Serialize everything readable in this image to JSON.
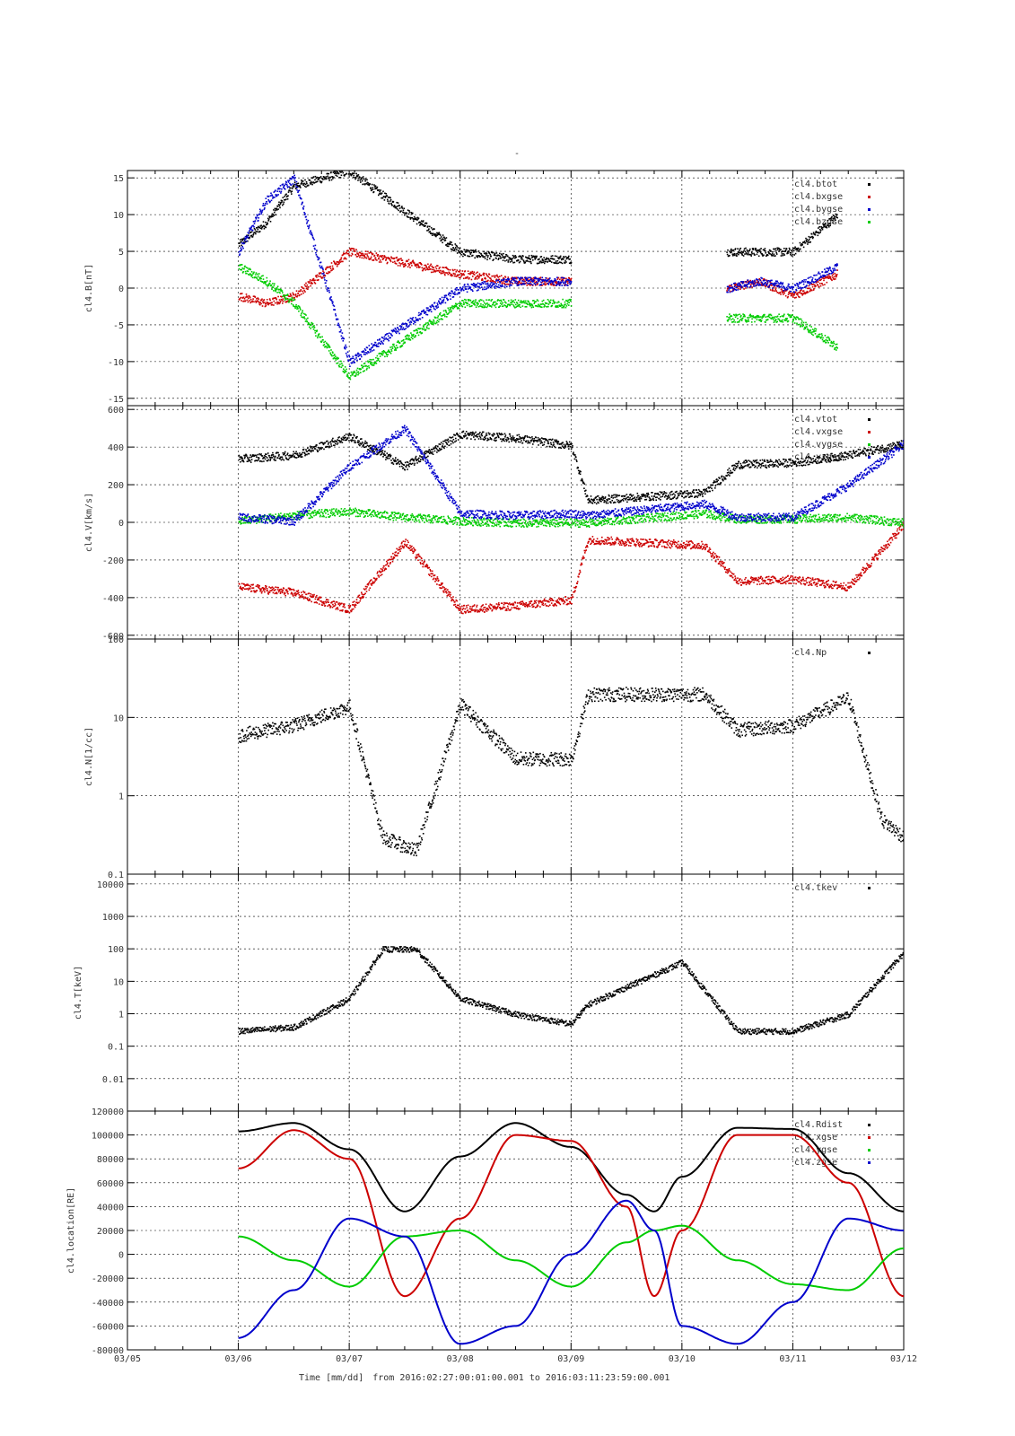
{
  "page": {
    "title": "-"
  },
  "footer": {
    "time_label": "Time [mm/dd]",
    "range_text": "from 2016:02:27:00:01:00.001  to  2016:03:11:23:59:00.001"
  },
  "colors": {
    "black": "#000000",
    "red": "#cc0000",
    "blue": "#0000cc",
    "green": "#00cc00"
  },
  "chart_data": [
    {
      "type": "scatter",
      "ylabel": "cl4.B[nT]",
      "ylim": [
        -16,
        16
      ],
      "yticks": [
        -15,
        -10,
        -5,
        0,
        5,
        10,
        15
      ],
      "ytick_labels": [
        "-15",
        "-10",
        "-5",
        "0",
        "5",
        "10",
        "15"
      ],
      "x": [
        "03/06",
        "03/06.25",
        "03/06.5",
        "03/07",
        "03/08",
        "03/08.5",
        "03/09",
        "03/09.15",
        "03/10.4",
        "03/10.7",
        "03/11",
        "03/11.4"
      ],
      "series": [
        {
          "name": "cl4.btot",
          "color": "#000000",
          "values": [
            6,
            9,
            14,
            16,
            5,
            4,
            4,
            null,
            5,
            5,
            5,
            10
          ]
        },
        {
          "name": "cl4.bxgse",
          "color": "#cc0000",
          "values": [
            -1,
            -2,
            -1,
            5,
            2,
            1,
            1,
            null,
            0,
            1,
            -1,
            2
          ]
        },
        {
          "name": "cl4.bygse",
          "color": "#0000cc",
          "values": [
            5,
            12,
            15,
            -10,
            0,
            1,
            1,
            null,
            0,
            1,
            0,
            3
          ]
        },
        {
          "name": "cl4.bzgse",
          "color": "#00cc00",
          "values": [
            3,
            1,
            -2,
            -12,
            -2,
            -2,
            -2,
            null,
            -4,
            -4,
            -4,
            -8
          ]
        }
      ]
    },
    {
      "type": "scatter",
      "ylabel": "cl4.V[km/s]",
      "ylim": [
        -620,
        620
      ],
      "yticks": [
        -600,
        -400,
        -200,
        0,
        200,
        400,
        600
      ],
      "ytick_labels": [
        "-600",
        "-400",
        "-200",
        "0",
        "200",
        "400",
        "600"
      ],
      "x": [
        "03/06",
        "03/06.5",
        "03/07",
        "03/07.5",
        "03/08",
        "03/08.5",
        "03/09",
        "03/09.15",
        "03/10.2",
        "03/10.5",
        "03/11",
        "03/11.5",
        "03/12"
      ],
      "series": [
        {
          "name": "cl4.vtot",
          "color": "#000000",
          "values": [
            340,
            360,
            460,
            300,
            470,
            450,
            410,
            120,
            160,
            310,
            320,
            360,
            420
          ]
        },
        {
          "name": "cl4.vxgse",
          "color": "#cc0000",
          "values": [
            -340,
            -370,
            -460,
            -100,
            -460,
            -440,
            -410,
            -90,
            -120,
            -310,
            -300,
            -340,
            -10
          ]
        },
        {
          "name": "cl4.vygse",
          "color": "#00cc00",
          "values": [
            10,
            40,
            60,
            30,
            10,
            0,
            0,
            0,
            50,
            20,
            20,
            30,
            0
          ]
        },
        {
          "name": "cl4.vzgse",
          "color": "#0000cc",
          "values": [
            30,
            10,
            300,
            500,
            50,
            40,
            50,
            40,
            100,
            30,
            30,
            200,
            420
          ]
        }
      ]
    },
    {
      "type": "scatter",
      "ylabel": "cl4.N[1/cc]",
      "yscale": "log",
      "ylim": [
        0.1,
        100
      ],
      "yticks": [
        0.1,
        1,
        10,
        100
      ],
      "ytick_labels": [
        "0.1",
        "1",
        "10",
        "100"
      ],
      "x": [
        "03/06",
        "03/06.5",
        "03/07",
        "03/07.3",
        "03/07.6",
        "03/08",
        "03/08.5",
        "03/09",
        "03/09.15",
        "03/10.2",
        "03/10.5",
        "03/11",
        "03/11.5",
        "03/11.8",
        "03/12"
      ],
      "series": [
        {
          "name": "cl4.Np",
          "color": "#000000",
          "values": [
            6,
            8,
            14,
            0.3,
            0.2,
            15,
            3,
            3,
            20,
            20,
            7,
            8,
            18,
            0.5,
            0.3
          ]
        }
      ]
    },
    {
      "type": "scatter",
      "ylabel": "cl4.T[keV]",
      "yscale": "log",
      "ylim": [
        0.001,
        20000
      ],
      "yticks": [
        0.01,
        0.1,
        1,
        10,
        100,
        1000,
        10000
      ],
      "ytick_labels": [
        "0.01",
        "0.1",
        "1",
        "10",
        "100",
        "1000",
        "10000"
      ],
      "x": [
        "03/06",
        "03/06.5",
        "03/07",
        "03/07.3",
        "03/07.6",
        "03/08",
        "03/08.5",
        "03/09",
        "03/09.15",
        "03/10",
        "03/10.5",
        "03/11",
        "03/11.5",
        "03/12"
      ],
      "series": [
        {
          "name": "cl4.tkev",
          "color": "#000000",
          "values": [
            0.3,
            0.4,
            3,
            100,
            100,
            3,
            1,
            0.5,
            2,
            40,
            0.3,
            0.3,
            1,
            80
          ]
        }
      ]
    },
    {
      "type": "line",
      "ylabel": "cl4.location[RE]",
      "ylim": [
        -80000,
        120000
      ],
      "yticks": [
        -80000,
        -60000,
        -40000,
        -20000,
        0,
        20000,
        40000,
        60000,
        80000,
        100000,
        120000
      ],
      "ytick_labels": [
        "-80000",
        "-60000",
        "-40000",
        "-20000",
        "0",
        "20000",
        "40000",
        "60000",
        "80000",
        "100000",
        "120000"
      ],
      "xlim": [
        "03/05",
        "03/12"
      ],
      "xticks": [
        "03/05",
        "03/06",
        "03/07",
        "03/08",
        "03/09",
        "03/10",
        "03/11",
        "03/12"
      ],
      "series": [
        {
          "name": "cl4.Rdist",
          "color": "#000000"
        },
        {
          "name": "cl4.xgse",
          "color": "#cc0000"
        },
        {
          "name": "cl4.ygse",
          "color": "#00cc00"
        },
        {
          "name": "cl4.zgse",
          "color": "#0000cc"
        }
      ],
      "samples": {
        "x": [
          "03/06",
          "03/06.5",
          "03/07",
          "03/07.5",
          "03/08",
          "03/08.5",
          "03/09",
          "03/09.5",
          "03/09.75",
          "03/10",
          "03/10.5",
          "03/11",
          "03/11.5",
          "03/12"
        ],
        "cl4.Rdist": [
          103000,
          110000,
          88000,
          36000,
          82000,
          110000,
          90000,
          50000,
          36000,
          65000,
          106000,
          105000,
          68000,
          36000
        ],
        "cl4.xgse": [
          72000,
          104000,
          80000,
          -35000,
          30000,
          100000,
          95000,
          40000,
          -35000,
          20000,
          100000,
          100000,
          60000,
          -35000
        ],
        "cl4.ygse": [
          15000,
          -5000,
          -27000,
          15000,
          20000,
          -5000,
          -27000,
          10000,
          20000,
          24000,
          -5000,
          -25000,
          -30000,
          5000
        ],
        "cl4.zgse": [
          -70000,
          -30000,
          30000,
          15000,
          -75000,
          -60000,
          0,
          45000,
          20000,
          -60000,
          -75000,
          -40000,
          30000,
          20000
        ]
      }
    }
  ]
}
